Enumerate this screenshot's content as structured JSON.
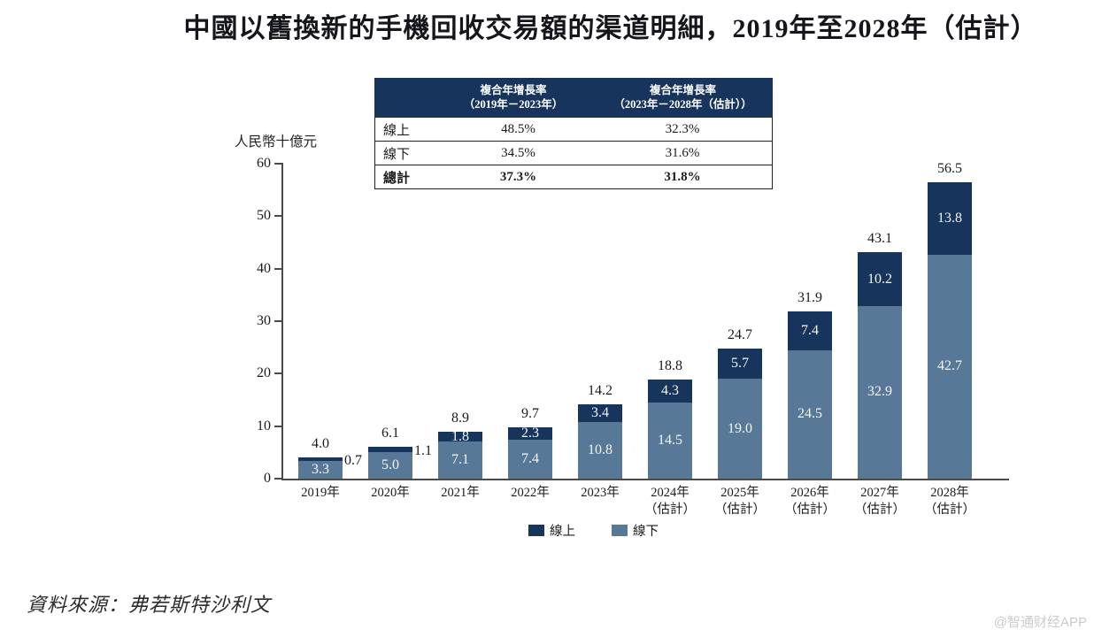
{
  "title": "中國以舊換新的手機回收交易額的渠道明細，2019年至2028年（估計）",
  "unit_label": "人民幣十億元",
  "cagr_table": {
    "headers": [
      "複合年增長率\n（2019年－2023年）",
      "複合年增長率\n（2023年－2028年（估計））"
    ],
    "rows": [
      {
        "label": "線上",
        "col1": "48.5%",
        "col2": "32.3%"
      },
      {
        "label": "線下",
        "col1": "34.5%",
        "col2": "31.6%"
      },
      {
        "label": "總計",
        "col1": "37.3%",
        "col2": "31.8%"
      }
    ]
  },
  "chart_data": {
    "type": "bar",
    "stacked": true,
    "title": "中國以舊換新的手機回收交易額的渠道明細，2019年至2028年（估計）",
    "ylabel": "人民幣十億元",
    "ylim": [
      0,
      60
    ],
    "yticks": [
      0,
      10,
      20,
      30,
      40,
      50,
      60
    ],
    "grid": false,
    "legend_position": "bottom",
    "categories": [
      "2019年",
      "2020年",
      "2021年",
      "2022年",
      "2023年",
      "2024年\n（估計）",
      "2025年\n（估計）",
      "2026年\n（估計）",
      "2027年\n（估計）",
      "2028年\n（估計）"
    ],
    "series": [
      {
        "name": "線上",
        "color": "#17355c",
        "values": [
          0.7,
          1.1,
          1.8,
          2.3,
          3.4,
          4.3,
          5.7,
          7.4,
          10.2,
          13.8
        ]
      },
      {
        "name": "線下",
        "color": "#587898",
        "values": [
          3.3,
          5.0,
          7.1,
          7.4,
          10.8,
          14.5,
          19.0,
          24.5,
          32.9,
          42.7
        ]
      }
    ],
    "totals": [
      4.0,
      6.1,
      8.9,
      9.7,
      14.2,
      18.8,
      24.7,
      31.9,
      43.1,
      56.5
    ]
  },
  "source": "資料來源：弗若斯特沙利文",
  "watermark": "@智通财经APP"
}
